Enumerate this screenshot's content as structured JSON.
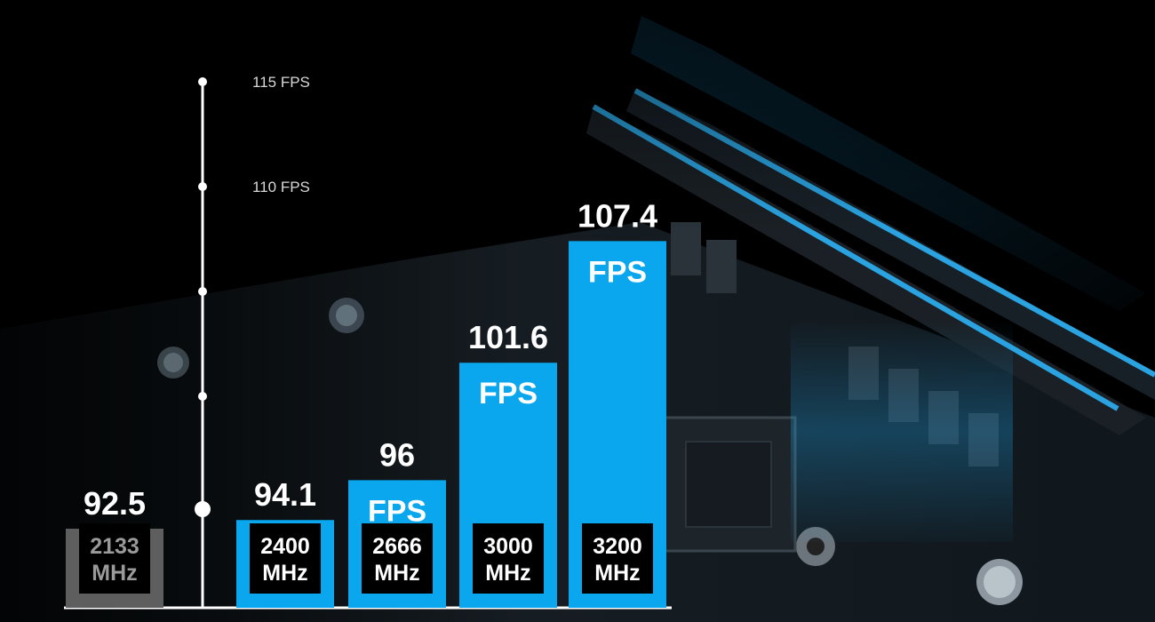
{
  "chart_data": {
    "type": "bar",
    "unit": "FPS",
    "bar_label_unit": "FPS",
    "ylim": [
      90,
      115
    ],
    "y_axis_labels": [
      {
        "value": 115,
        "label": "115 FPS"
      },
      {
        "value": 110,
        "label": "110 FPS"
      }
    ],
    "y_axis_unlabeled_ticks": [
      105,
      100
    ],
    "categories": [
      {
        "speed": "2133",
        "unit": "MHz"
      },
      {
        "speed": "2400",
        "unit": "MHz"
      },
      {
        "speed": "2666",
        "unit": "MHz"
      },
      {
        "speed": "3000",
        "unit": "MHz"
      },
      {
        "speed": "3200",
        "unit": "MHz"
      }
    ],
    "values": [
      92.5,
      94.1,
      96,
      101.6,
      107.4
    ],
    "value_labels": [
      "92.5",
      "94.1",
      "96",
      "101.6",
      "107.4"
    ],
    "baseline_index": 0,
    "colors": {
      "baseline_bar": "#5e5e5e",
      "bar": "#0aa7ee",
      "label_box": "#000000",
      "axis": "#ffffff",
      "memory_glow": "#1fa3e8"
    },
    "grid": false,
    "legend": "none"
  }
}
